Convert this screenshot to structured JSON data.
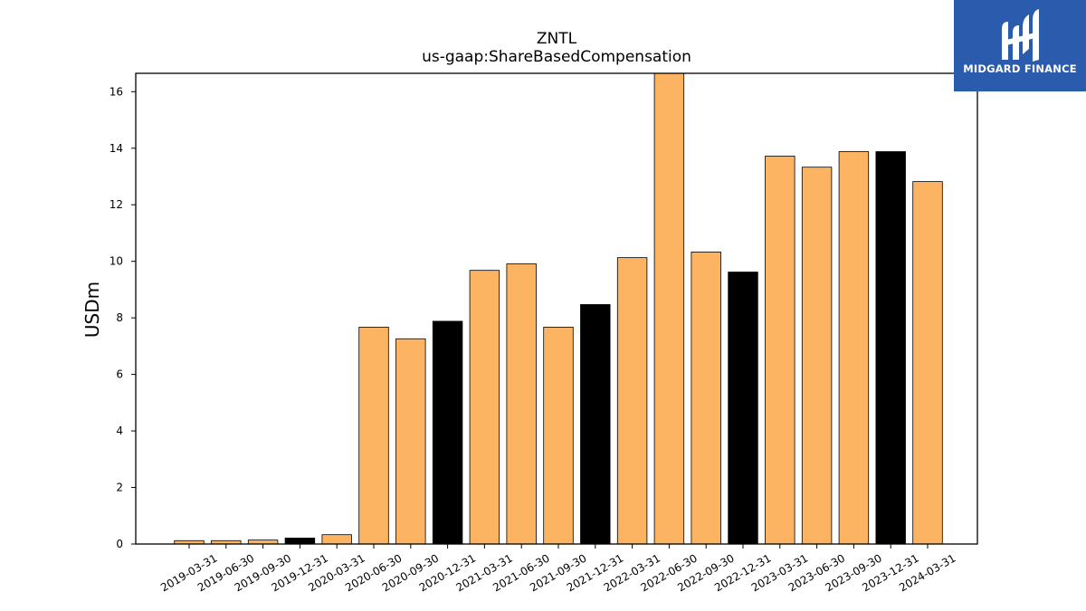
{
  "logo": {
    "text": "MIDGARD FINANCE",
    "icon": "midgard-m-icon",
    "background": "#2b5bad"
  },
  "chart_data": {
    "type": "bar",
    "title": "ZNTL",
    "subtitle": "us-gaap:ShareBasedCompensation",
    "xlabel": "",
    "ylabel": "USDm",
    "ylim": [
      0,
      16.65
    ],
    "yticks": [
      0,
      2,
      4,
      6,
      8,
      10,
      12,
      14,
      16
    ],
    "grid": false,
    "colors": {
      "quarter": "#fdb462",
      "year_end": "#000000",
      "edge": "#000000"
    },
    "categories": [
      "2019-03-31",
      "2019-06-30",
      "2019-09-30",
      "2019-12-31",
      "2020-03-31",
      "2020-06-30",
      "2020-09-30",
      "2020-12-31",
      "2021-03-31",
      "2021-06-30",
      "2021-09-30",
      "2021-12-31",
      "2022-03-31",
      "2022-06-30",
      "2022-09-30",
      "2022-12-31",
      "2023-03-31",
      "2023-06-30",
      "2023-09-30",
      "2023-12-31",
      "2024-03-31"
    ],
    "values": [
      0.12,
      0.12,
      0.14,
      0.21,
      0.33,
      7.67,
      7.26,
      7.88,
      9.68,
      9.91,
      7.67,
      8.47,
      10.13,
      16.65,
      10.33,
      9.62,
      13.72,
      13.33,
      13.88,
      13.88,
      12.82
    ]
  }
}
